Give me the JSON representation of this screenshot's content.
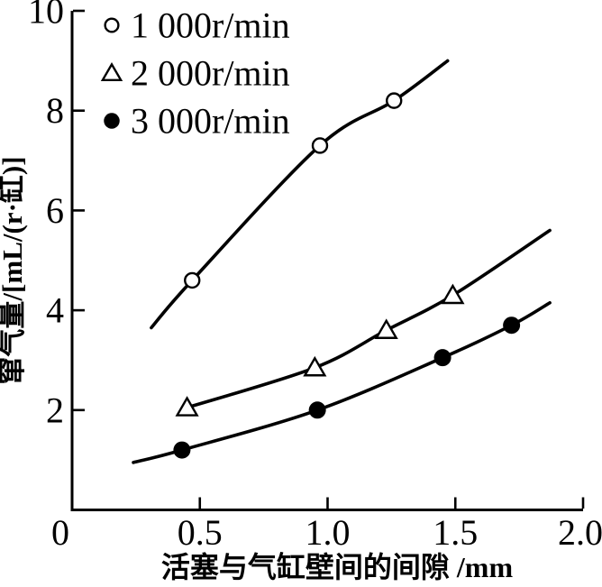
{
  "chart_data": {
    "type": "line",
    "title": "",
    "xlabel": "活塞与气缸壁间的间隙 /mm",
    "ylabel": "窜气量/[mL/(r·缸)]",
    "xlim": [
      0,
      2.0
    ],
    "ylim": [
      0,
      10
    ],
    "x_tick_values": [
      0,
      0.5,
      1.0,
      1.5,
      2.0
    ],
    "x_tick_labels": [
      "0",
      "0.5",
      "1.0",
      "1.5",
      "2.0"
    ],
    "y_tick_values": [
      2,
      4,
      6,
      8,
      10
    ],
    "y_tick_labels": [
      "2",
      "4",
      "6",
      "8",
      "10"
    ],
    "grid": false,
    "legend_position": "top-left-inside",
    "line_color": "#000000",
    "background_color": "#ffffff",
    "series": [
      {
        "name": "1 000r/min",
        "marker": "circle-open",
        "points": [
          [
            0.47,
            4.6
          ],
          [
            0.97,
            7.3
          ],
          [
            1.26,
            8.2
          ]
        ],
        "curve_points": [
          [
            0.31,
            3.65
          ],
          [
            0.47,
            4.6
          ],
          [
            0.97,
            7.3
          ],
          [
            1.26,
            8.2
          ],
          [
            1.47,
            9.0
          ]
        ]
      },
      {
        "name": "2 000r/min",
        "marker": "triangle-open",
        "points": [
          [
            0.45,
            2.05
          ],
          [
            0.95,
            2.85
          ],
          [
            1.23,
            3.6
          ],
          [
            1.49,
            4.3
          ]
        ],
        "curve_points": [
          [
            0.45,
            2.05
          ],
          [
            0.95,
            2.85
          ],
          [
            1.23,
            3.6
          ],
          [
            1.49,
            4.3
          ],
          [
            1.87,
            5.6
          ]
        ]
      },
      {
        "name": "3 000r/min",
        "marker": "circle-filled",
        "points": [
          [
            0.43,
            1.2
          ],
          [
            0.96,
            2.0
          ],
          [
            1.45,
            3.05
          ],
          [
            1.72,
            3.7
          ]
        ],
        "curve_points": [
          [
            0.24,
            0.95
          ],
          [
            0.43,
            1.2
          ],
          [
            0.96,
            2.0
          ],
          [
            1.45,
            3.05
          ],
          [
            1.72,
            3.7
          ],
          [
            1.87,
            4.15
          ]
        ]
      }
    ]
  }
}
